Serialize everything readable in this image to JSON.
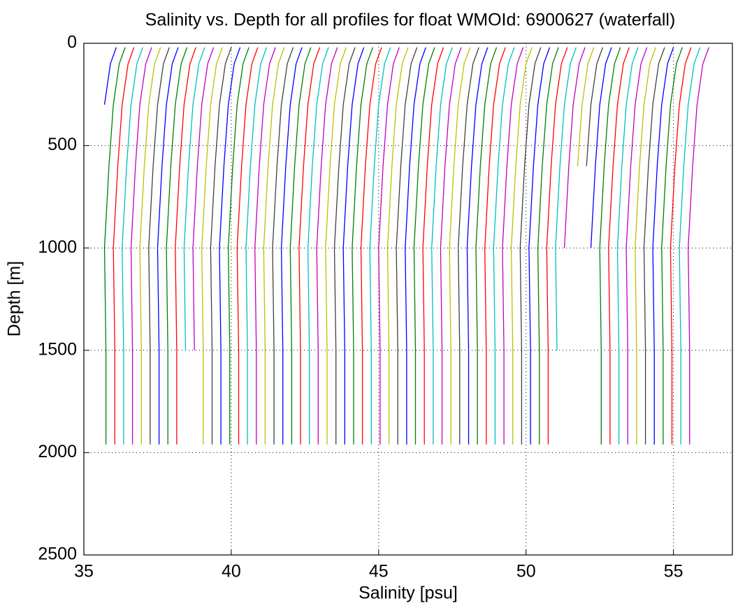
{
  "chart_data": {
    "type": "line",
    "title": "Salinity vs. Depth for all profiles for float WMOId: 6900627 (waterfall)",
    "xlabel": "Salinity [psu]",
    "ylabel": "Depth [m]",
    "xlim": [
      35,
      57
    ],
    "ylim": [
      0,
      2500
    ],
    "y_reversed": true,
    "xticks": [
      35,
      40,
      45,
      50,
      55
    ],
    "yticks": [
      0,
      500,
      1000,
      1500,
      2000,
      2500
    ],
    "grid": true,
    "y": [
      20,
      100,
      300,
      600,
      1000,
      1500,
      1960
    ],
    "series": [
      {
        "color": "#0000ff",
        "x": [
          36.1,
          35.9,
          35.7,
          null,
          null,
          null,
          null
        ]
      },
      {
        "color": "#008000",
        "x": [
          36.4,
          36.2,
          36.0,
          35.85,
          35.7,
          35.75,
          35.75
        ]
      },
      {
        "color": "#ff0000",
        "x": [
          36.7,
          36.5,
          36.3,
          36.15,
          36.0,
          36.05,
          36.05
        ]
      },
      {
        "color": "#00bfbf",
        "x": [
          37.0,
          36.8,
          36.6,
          36.45,
          36.3,
          36.35,
          36.35
        ]
      },
      {
        "color": "#bf00bf",
        "x": [
          37.3,
          37.1,
          36.9,
          36.75,
          36.6,
          36.65,
          36.65
        ]
      },
      {
        "color": "#bfbf00",
        "x": [
          37.6,
          37.4,
          37.2,
          37.05,
          36.9,
          36.95,
          36.95
        ]
      },
      {
        "color": "#404040",
        "x": [
          37.9,
          37.7,
          37.5,
          37.35,
          37.2,
          37.25,
          37.25
        ]
      },
      {
        "color": "#0000ff",
        "x": [
          38.2,
          38.0,
          37.8,
          37.65,
          37.5,
          37.55,
          37.55
        ]
      },
      {
        "color": "#008000",
        "x": [
          38.5,
          38.3,
          38.1,
          37.95,
          37.8,
          37.85,
          37.85
        ]
      },
      {
        "color": "#ff0000",
        "x": [
          38.8,
          38.6,
          38.4,
          38.25,
          38.1,
          38.15,
          38.15
        ]
      },
      {
        "color": "#00bfbf",
        "x": [
          39.1,
          38.9,
          38.7,
          38.55,
          38.4,
          38.45,
          null
        ]
      },
      {
        "color": "#bf00bf",
        "x": [
          39.4,
          39.2,
          39.0,
          38.85,
          38.7,
          38.75,
          null
        ]
      },
      {
        "color": "#bfbf00",
        "x": [
          39.7,
          39.5,
          39.3,
          39.15,
          39.0,
          39.05,
          39.05
        ]
      },
      {
        "color": "#404040",
        "x": [
          40.0,
          39.8,
          39.6,
          39.45,
          39.3,
          39.35,
          39.35
        ]
      },
      {
        "color": "#0000ff",
        "x": [
          40.3,
          40.1,
          39.9,
          39.75,
          39.6,
          39.65,
          39.65
        ]
      },
      {
        "color": "#008000",
        "x": [
          40.6,
          40.4,
          40.2,
          40.05,
          39.9,
          39.95,
          39.95
        ]
      },
      {
        "color": "#ff0000",
        "x": [
          40.9,
          40.7,
          40.5,
          40.35,
          40.2,
          40.25,
          40.25
        ]
      },
      {
        "color": "#00bfbf",
        "x": [
          41.2,
          41.0,
          40.8,
          40.65,
          40.5,
          40.55,
          40.55
        ]
      },
      {
        "color": "#bf00bf",
        "x": [
          41.5,
          41.3,
          41.1,
          40.95,
          40.8,
          40.85,
          40.85
        ]
      },
      {
        "color": "#bfbf00",
        "x": [
          41.8,
          41.6,
          41.4,
          41.25,
          41.1,
          41.15,
          41.15
        ]
      },
      {
        "color": "#404040",
        "x": [
          42.1,
          41.9,
          41.7,
          41.55,
          41.4,
          41.45,
          41.45
        ]
      },
      {
        "color": "#0000ff",
        "x": [
          42.4,
          42.2,
          42.0,
          41.85,
          41.7,
          41.75,
          41.75
        ]
      },
      {
        "color": "#008000",
        "x": [
          42.7,
          42.5,
          42.3,
          42.15,
          42.0,
          42.05,
          42.05
        ]
      },
      {
        "color": "#ff0000",
        "x": [
          43.0,
          42.8,
          42.6,
          42.45,
          42.3,
          42.35,
          42.35
        ]
      },
      {
        "color": "#00bfbf",
        "x": [
          43.3,
          43.1,
          42.9,
          42.75,
          42.6,
          42.65,
          42.65
        ]
      },
      {
        "color": "#bf00bf",
        "x": [
          43.6,
          43.4,
          43.2,
          43.05,
          42.9,
          42.95,
          42.95
        ]
      },
      {
        "color": "#bfbf00",
        "x": [
          43.9,
          43.7,
          43.5,
          43.35,
          43.2,
          43.25,
          43.25
        ]
      },
      {
        "color": "#404040",
        "x": [
          44.2,
          44.0,
          43.8,
          43.65,
          43.5,
          43.55,
          43.55
        ]
      },
      {
        "color": "#0000ff",
        "x": [
          44.5,
          44.3,
          44.1,
          43.95,
          43.8,
          43.85,
          43.85
        ]
      },
      {
        "color": "#008000",
        "x": [
          44.8,
          44.6,
          44.4,
          44.25,
          44.1,
          44.15,
          44.15
        ]
      },
      {
        "color": "#ff0000",
        "x": [
          45.1,
          44.9,
          44.7,
          44.55,
          44.4,
          44.45,
          44.45
        ]
      },
      {
        "color": "#00bfbf",
        "x": [
          45.4,
          45.2,
          45.0,
          44.85,
          44.7,
          44.75,
          44.75
        ]
      },
      {
        "color": "#bf00bf",
        "x": [
          45.7,
          45.5,
          45.3,
          45.15,
          45.0,
          45.05,
          45.05
        ]
      },
      {
        "color": "#bfbf00",
        "x": [
          46.0,
          45.8,
          45.6,
          45.45,
          45.3,
          45.35,
          45.35
        ]
      },
      {
        "color": "#404040",
        "x": [
          46.3,
          46.1,
          45.9,
          45.75,
          45.6,
          45.65,
          45.65
        ]
      },
      {
        "color": "#0000ff",
        "x": [
          46.6,
          46.4,
          46.2,
          46.05,
          45.9,
          45.95,
          45.95
        ]
      },
      {
        "color": "#008000",
        "x": [
          46.9,
          46.7,
          46.5,
          46.35,
          46.2,
          46.25,
          46.25
        ]
      },
      {
        "color": "#ff0000",
        "x": [
          47.2,
          47.0,
          46.8,
          46.65,
          46.5,
          46.55,
          46.55
        ]
      },
      {
        "color": "#00bfbf",
        "x": [
          47.5,
          47.3,
          47.1,
          46.95,
          46.8,
          46.85,
          46.85
        ]
      },
      {
        "color": "#bf00bf",
        "x": [
          47.8,
          47.6,
          47.4,
          47.25,
          47.1,
          47.15,
          47.15
        ]
      },
      {
        "color": "#bfbf00",
        "x": [
          48.1,
          47.9,
          47.7,
          47.55,
          47.4,
          47.45,
          47.45
        ]
      },
      {
        "color": "#404040",
        "x": [
          48.4,
          48.2,
          48.0,
          47.85,
          47.7,
          47.75,
          47.75
        ]
      },
      {
        "color": "#0000ff",
        "x": [
          48.7,
          48.5,
          48.3,
          48.15,
          48.0,
          48.05,
          48.05
        ]
      },
      {
        "color": "#008000",
        "x": [
          49.0,
          48.8,
          48.6,
          48.45,
          48.3,
          48.35,
          48.35
        ]
      },
      {
        "color": "#ff0000",
        "x": [
          49.3,
          49.1,
          48.9,
          48.75,
          48.6,
          48.65,
          48.65
        ]
      },
      {
        "color": "#00bfbf",
        "x": [
          49.6,
          49.4,
          49.2,
          49.05,
          48.9,
          48.95,
          48.95
        ]
      },
      {
        "color": "#bf00bf",
        "x": [
          49.9,
          49.7,
          49.5,
          49.35,
          49.2,
          49.25,
          49.25
        ]
      },
      {
        "color": "#bfbf00",
        "x": [
          50.2,
          50.0,
          49.8,
          49.65,
          49.5,
          49.55,
          49.55
        ]
      },
      {
        "color": "#404040",
        "x": [
          50.5,
          50.3,
          50.1,
          49.95,
          49.8,
          49.85,
          49.85
        ]
      },
      {
        "color": "#0000ff",
        "x": [
          50.8,
          50.6,
          50.4,
          50.25,
          50.1,
          50.15,
          50.15
        ]
      },
      {
        "color": "#008000",
        "x": [
          51.1,
          50.9,
          50.7,
          50.55,
          50.4,
          50.45,
          50.45
        ]
      },
      {
        "color": "#ff0000",
        "x": [
          51.4,
          51.2,
          51.0,
          50.85,
          50.7,
          50.75,
          50.75
        ]
      },
      {
        "color": "#00bfbf",
        "x": [
          51.7,
          51.5,
          51.3,
          51.15,
          51.0,
          51.05,
          null
        ]
      },
      {
        "color": "#bf00bf",
        "x": [
          52.0,
          51.8,
          51.6,
          51.45,
          51.3,
          null,
          null
        ]
      },
      {
        "color": "#bfbf00",
        "x": [
          52.3,
          52.1,
          51.9,
          51.75,
          null,
          null,
          null
        ]
      },
      {
        "color": "#404040",
        "x": [
          52.6,
          52.4,
          52.2,
          52.05,
          null,
          null,
          null
        ]
      },
      {
        "color": "#0000ff",
        "x": [
          52.9,
          52.7,
          52.5,
          52.35,
          52.2,
          null,
          null
        ]
      },
      {
        "color": "#008000",
        "x": [
          53.2,
          53.0,
          52.8,
          52.65,
          52.5,
          52.55,
          52.55
        ]
      },
      {
        "color": "#ff0000",
        "x": [
          53.5,
          53.3,
          53.1,
          52.95,
          52.8,
          52.85,
          52.85
        ]
      },
      {
        "color": "#00bfbf",
        "x": [
          53.8,
          53.6,
          53.4,
          53.25,
          53.1,
          53.15,
          53.15
        ]
      },
      {
        "color": "#bf00bf",
        "x": [
          54.1,
          53.9,
          53.7,
          53.55,
          53.4,
          53.45,
          53.45
        ]
      },
      {
        "color": "#bfbf00",
        "x": [
          54.4,
          54.2,
          54.0,
          53.85,
          53.7,
          53.75,
          53.75
        ]
      },
      {
        "color": "#404040",
        "x": [
          54.7,
          54.5,
          54.3,
          54.15,
          54.0,
          54.05,
          54.05
        ]
      },
      {
        "color": "#0000ff",
        "x": [
          55.0,
          54.8,
          54.6,
          54.45,
          54.3,
          54.35,
          54.35
        ]
      },
      {
        "color": "#008000",
        "x": [
          55.3,
          55.1,
          54.9,
          54.75,
          54.6,
          54.65,
          54.65
        ]
      },
      {
        "color": "#ff0000",
        "x": [
          55.6,
          55.4,
          55.2,
          55.05,
          54.9,
          54.95,
          54.95
        ]
      },
      {
        "color": "#00bfbf",
        "x": [
          55.9,
          55.7,
          55.5,
          55.35,
          55.2,
          55.25,
          55.25
        ]
      },
      {
        "color": "#bf00bf",
        "x": [
          56.2,
          56.0,
          55.8,
          55.65,
          55.5,
          55.55,
          55.55
        ]
      }
    ]
  }
}
